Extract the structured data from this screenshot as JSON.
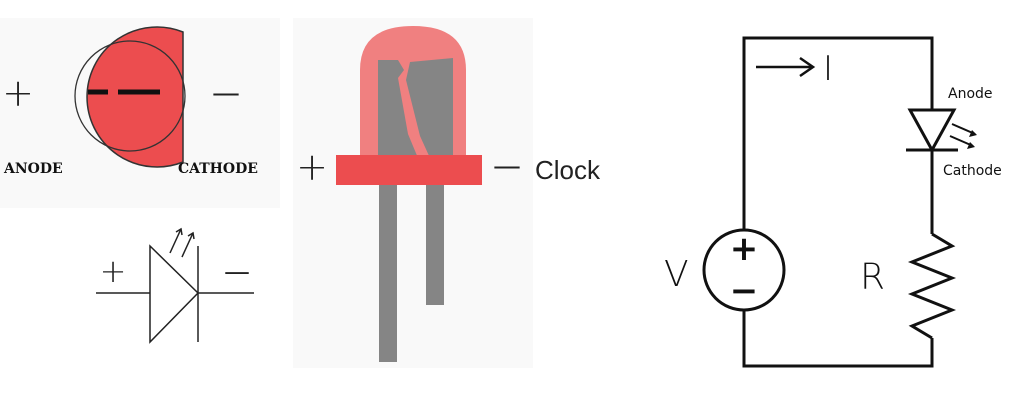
{
  "colors": {
    "led_red": "#ec4d4f",
    "led_lens": "#f08080",
    "lead_gray": "#858585",
    "stroke": "#000000",
    "panel_bg": "#f9f9f9"
  },
  "led_top_view": {
    "plus_sign": "+",
    "minus_sign": "—",
    "anode_label": "ANODE",
    "cathode_label": "CATHODE"
  },
  "led_symbol": {
    "plus_sign": "+",
    "minus_sign": "—"
  },
  "led_side_view": {
    "plus_sign": "+",
    "minus_sign": "—",
    "pin_label": "Clock"
  },
  "circuit": {
    "current_label": "I",
    "voltage_label": "V",
    "resistor_label": "R",
    "anode_label": "Anode",
    "cathode_label": "Cathode",
    "source_plus": "+",
    "source_minus": "−"
  }
}
